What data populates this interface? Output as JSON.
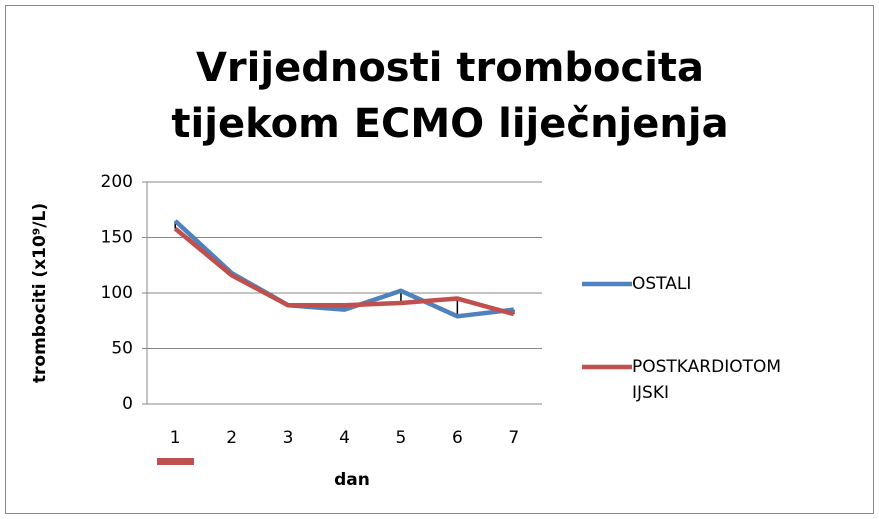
{
  "chart_data": {
    "type": "line",
    "title": "Vrijednosti trombocita tijekom ECMO liječnjenja",
    "xlabel": "dan",
    "ylabel": "trombociti (x10⁹/L)",
    "categories": [
      "1",
      "2",
      "3",
      "4",
      "5",
      "6",
      "7"
    ],
    "series": [
      {
        "name": "OSTALI",
        "color": "#4f81bd",
        "values": [
          165,
          118,
          89,
          85,
          102,
          79,
          85
        ]
      },
      {
        "name": "POSTKARDIOTOMIJSKI",
        "color": "#c0504d",
        "values": [
          158,
          116,
          89,
          89,
          91,
          95,
          81
        ]
      }
    ],
    "ylim": [
      0,
      200
    ],
    "yticks": [
      0,
      50,
      100,
      150,
      200
    ],
    "grid": true,
    "legend": "right"
  }
}
